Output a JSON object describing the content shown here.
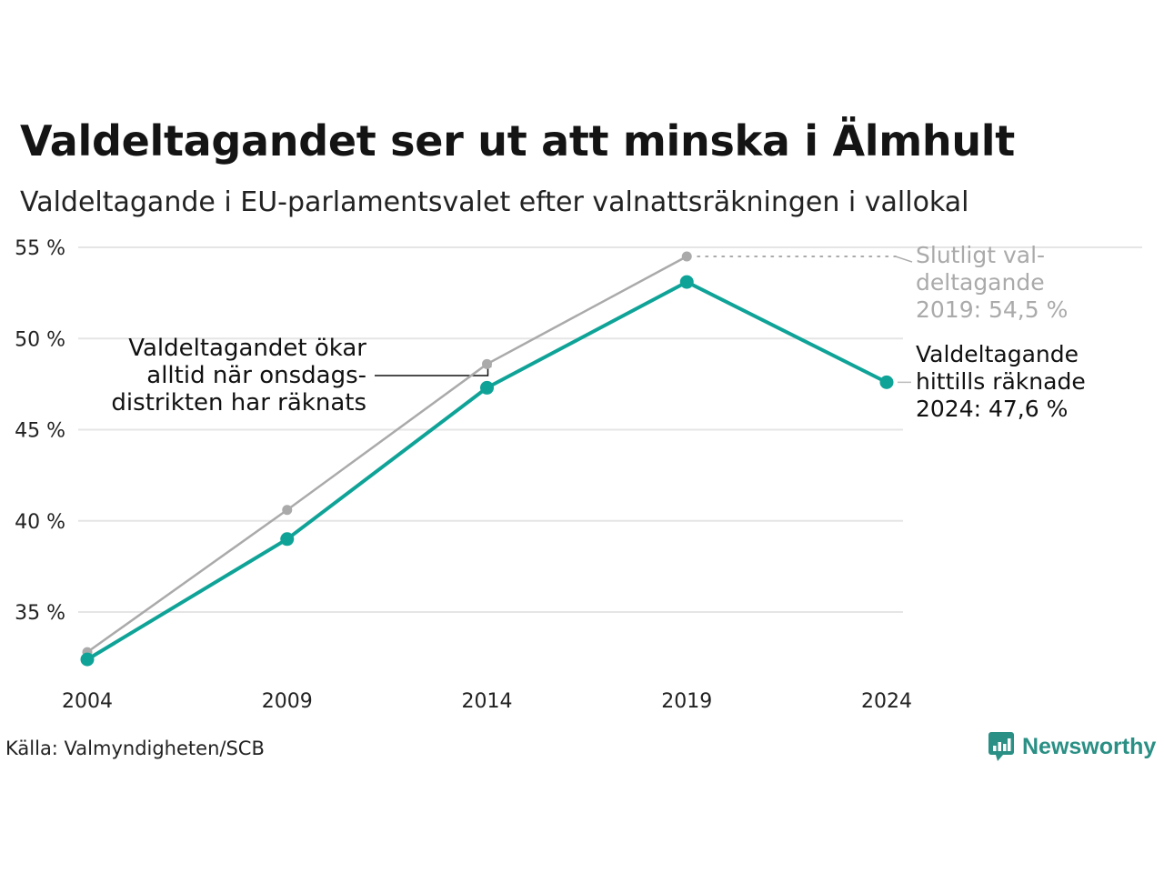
{
  "header": {
    "title": "Valdeltagandet ser ut att minska i Älmhult",
    "subtitle": "Valdeltagande i EU-parlamentsvalet efter valnattsräkningen i vallokal"
  },
  "footer": {
    "source": "Källa: Valmyndigheten/SCB",
    "logo_text": "Newsworthy"
  },
  "colors": {
    "teal": "#0fa398",
    "gray": "#aaaaaa",
    "grid": "#e5e5e5"
  },
  "chart_data": {
    "type": "line",
    "title": "Valdeltagandet ser ut att minska i Älmhult",
    "subtitle": "Valdeltagande i EU-parlamentsvalet efter valnattsräkningen i vallokal",
    "x": [
      2004,
      2009,
      2014,
      2019,
      2024
    ],
    "x_tick_labels": [
      "2004",
      "2009",
      "2014",
      "2019",
      "2024"
    ],
    "y_ticks": [
      35,
      40,
      45,
      50,
      55
    ],
    "y_tick_labels": [
      "35 %",
      "40 %",
      "45 %",
      "50 %",
      "55 %"
    ],
    "ylim": [
      31,
      55
    ],
    "grid": true,
    "series": [
      {
        "key": "final",
        "color": "#aaaaaa",
        "x": [
          2004,
          2009,
          2014,
          2019
        ],
        "values": [
          32.8,
          40.6,
          48.6,
          54.5
        ]
      },
      {
        "key": "preliminary",
        "color": "#0fa398",
        "x": [
          2004,
          2009,
          2014,
          2019,
          2024
        ],
        "values": [
          32.4,
          39.0,
          47.3,
          53.1,
          47.6
        ]
      }
    ],
    "annotations": {
      "final_label": [
        "Slutligt val-",
        "deltagande",
        "2019: 54,5 %"
      ],
      "current_label": [
        "Valdeltagande",
        "hittills räknade",
        "2024: 47,6 %"
      ],
      "note": [
        "Valdeltagandet ökar",
        "alltid när onsdags-",
        "distrikten har räknats"
      ]
    }
  }
}
